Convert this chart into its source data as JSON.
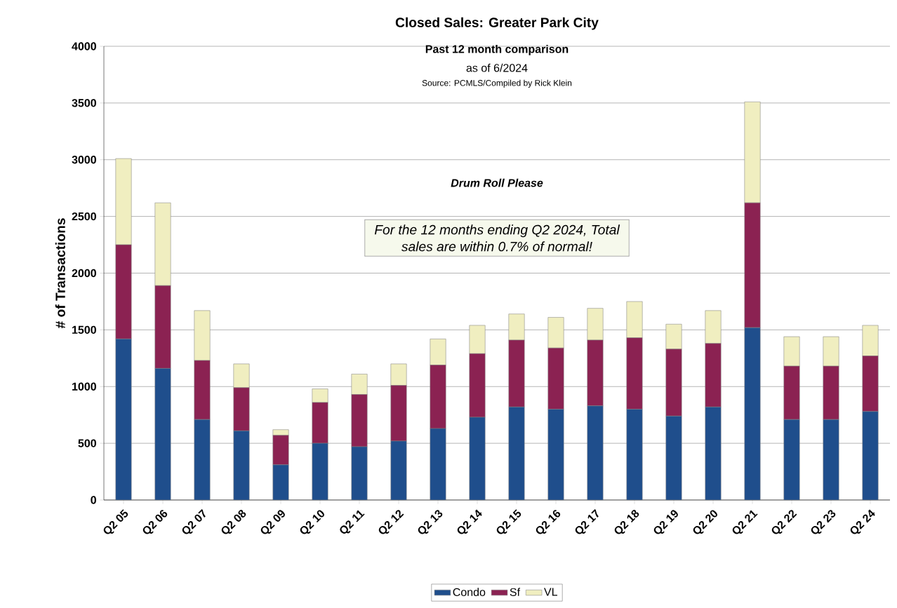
{
  "chart_data": {
    "type": "bar",
    "title": "Closed Sales: Greater Park City",
    "subtitle": "Past 12 month comparison",
    "ylabel": "# of Transactions",
    "annotations": [
      "as of 6/2024",
      "Source: PCMLS/Compiled by Rick Klein",
      "Drum Roll Please",
      "For the 12 months ending Q2 2024, Total sales are within 0.7% of normal!"
    ],
    "categories": [
      "Q2 05",
      "Q2 06",
      "Q2 07",
      "Q2 08",
      "Q2 09",
      "Q2 10",
      "Q2 11",
      "Q2 12",
      "Q2 13",
      "Q2 14",
      "Q2 15",
      "Q2 16",
      "Q2 17",
      "Q2 18",
      "Q2 19",
      "Q2 20",
      "Q2 21",
      "Q2 22",
      "Q2 23",
      "Q2 24"
    ],
    "stacked": true,
    "series": [
      {
        "name": "Condo",
        "color": "#1f4e8c",
        "values": [
          1420,
          1160,
          710,
          610,
          310,
          500,
          470,
          520,
          630,
          730,
          820,
          800,
          830,
          800,
          740,
          820,
          1520,
          710,
          710,
          780
        ]
      },
      {
        "name": "Sf",
        "color": "#8b2252",
        "values": [
          830,
          730,
          520,
          380,
          260,
          360,
          460,
          490,
          560,
          560,
          590,
          540,
          580,
          630,
          590,
          560,
          1100,
          470,
          470,
          490
        ]
      },
      {
        "name": "VL",
        "color": "#f0eec0",
        "values": [
          760,
          730,
          440,
          210,
          50,
          120,
          180,
          190,
          230,
          250,
          230,
          270,
          280,
          320,
          220,
          290,
          890,
          260,
          260,
          270
        ]
      }
    ],
    "ylim": [
      0,
      4000
    ],
    "yticks": [
      0,
      500,
      1000,
      1500,
      2000,
      2500,
      3000,
      3500,
      4000
    ],
    "grid": "y",
    "legend": "bottom"
  }
}
